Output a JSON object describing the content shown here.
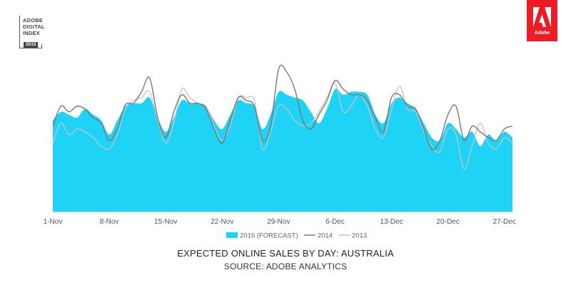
{
  "brand": {
    "badge_lines": [
      "ADOBE",
      "DIGITAL",
      "INDEX"
    ],
    "badge_year": "2015",
    "logo_text": "Adobe",
    "logo_color": "#ed1c24"
  },
  "chart_data": {
    "type": "area",
    "title": "EXPECTED ONLINE SALES BY DAY: AUSTRALIA",
    "subtitle": "SOURCE: ADOBE ANALYTICS",
    "x_start": "1-Nov",
    "x_end": "28-Dec",
    "x_ticks": [
      {
        "day": 0,
        "label": "1-Nov"
      },
      {
        "day": 7,
        "label": "8-Nov"
      },
      {
        "day": 14,
        "label": "15-Nov"
      },
      {
        "day": 21,
        "label": "22-Nov"
      },
      {
        "day": 28,
        "label": "29-Nov"
      },
      {
        "day": 35,
        "label": "6-Dec"
      },
      {
        "day": 42,
        "label": "13-Dec"
      },
      {
        "day": 49,
        "label": "20-Dec"
      },
      {
        "day": 56,
        "label": "27-Dec"
      }
    ],
    "y_axis_labels": "none",
    "ylim": [
      0,
      100
    ],
    "grid": false,
    "legend_position": "bottom",
    "series": [
      {
        "name": "2015 (FORECAST)",
        "style": "area",
        "color": "#1ed3f6",
        "values": [
          64,
          70,
          68,
          66,
          72,
          68,
          64,
          54,
          64,
          74,
          76,
          76,
          80,
          66,
          56,
          66,
          78,
          76,
          76,
          74,
          64,
          58,
          68,
          78,
          76,
          74,
          58,
          68,
          84,
          82,
          80,
          78,
          70,
          62,
          72,
          86,
          82,
          84,
          84,
          82,
          68,
          62,
          76,
          80,
          76,
          72,
          62,
          52,
          50,
          62,
          58,
          52,
          56,
          46,
          54,
          50,
          56,
          52
        ]
      },
      {
        "name": "2014",
        "style": "line",
        "color": "#787878",
        "values": [
          60,
          74,
          70,
          74,
          72,
          66,
          62,
          50,
          58,
          75,
          76,
          84,
          94,
          66,
          52,
          70,
          82,
          76,
          76,
          72,
          58,
          48,
          64,
          80,
          78,
          74,
          50,
          60,
          100,
          98,
          86,
          64,
          58,
          68,
          78,
          92,
          86,
          82,
          82,
          78,
          66,
          56,
          80,
          82,
          74,
          72,
          58,
          44,
          50,
          68,
          74,
          50,
          60,
          56,
          52,
          50,
          58,
          60
        ]
      },
      {
        "name": "2013",
        "style": "line",
        "color": "#c4c4c4",
        "values": [
          48,
          62,
          54,
          58,
          56,
          52,
          46,
          44,
          54,
          72,
          78,
          80,
          84,
          64,
          48,
          62,
          86,
          80,
          76,
          74,
          60,
          50,
          60,
          80,
          80,
          78,
          44,
          56,
          74,
          72,
          64,
          60,
          62,
          70,
          80,
          90,
          70,
          74,
          82,
          74,
          58,
          52,
          72,
          88,
          72,
          70,
          56,
          46,
          42,
          58,
          54,
          30,
          46,
          62,
          48,
          44,
          52,
          48
        ]
      }
    ]
  }
}
